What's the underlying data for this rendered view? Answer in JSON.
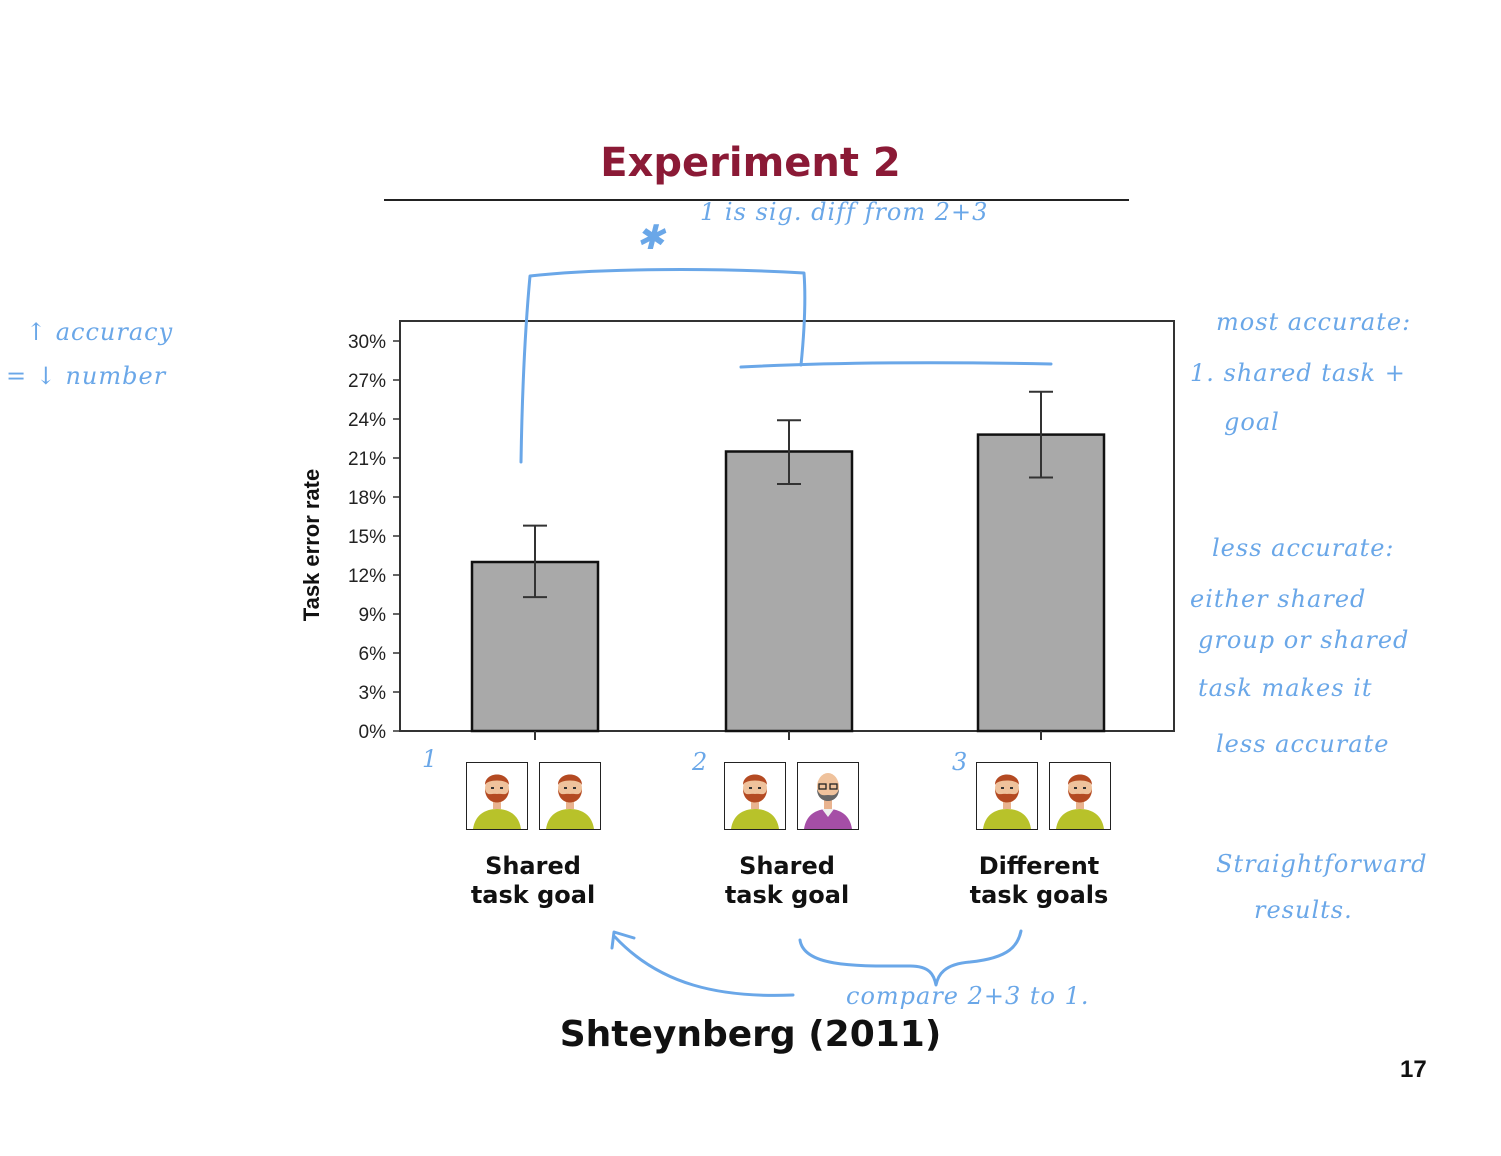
{
  "slide": {
    "title": "Experiment 2",
    "citation": "Shteynberg (2011)",
    "page_number": "17"
  },
  "chart_data": {
    "type": "bar",
    "ylabel": "Task error rate",
    "xlabel": "",
    "ylim": [
      0,
      30
    ],
    "yticks": [
      0,
      3,
      6,
      9,
      12,
      15,
      18,
      21,
      24,
      27,
      30
    ],
    "ytick_labels": [
      "0%",
      "3%",
      "6%",
      "9%",
      "12%",
      "15%",
      "18%",
      "21%",
      "24%",
      "27%",
      "30%"
    ],
    "categories": [
      "Shared task goal",
      "Shared task goal",
      "Different task goals"
    ],
    "category_lines": [
      [
        "Shared",
        "task goal"
      ],
      [
        "Shared",
        "task goal"
      ],
      [
        "Different",
        "task goals"
      ]
    ],
    "values": [
      13.0,
      21.5,
      22.8
    ],
    "error_low": [
      10.3,
      19.0,
      19.5
    ],
    "error_high": [
      15.8,
      23.9,
      26.1
    ],
    "bar_color": "#a9a9a9",
    "grid": false
  },
  "avatars": [
    [
      "bearded-man-green-shirt",
      "bearded-man-green-shirt"
    ],
    [
      "bearded-man-green-shirt",
      "bald-man-glasses-purple-shirt"
    ],
    [
      "bearded-man-green-shirt",
      "bearded-man-green-shirt"
    ]
  ],
  "annotations": {
    "star": "✱",
    "top": "1 is sig. diff from 2+3",
    "left_1": "↑ accuracy",
    "left_2": "= ↓ number",
    "right_1": "most accurate:",
    "right_2": "1. shared task +",
    "right_3": "goal",
    "right_4": "less accurate:",
    "right_5": "either shared",
    "right_6": "group or shared",
    "right_7": "task makes it",
    "right_8": "less accurate",
    "right_9": "Straightforward",
    "right_10": "results.",
    "bottom": "compare 2+3 to 1.",
    "num_1": "1",
    "num_2": "2",
    "num_3": "3",
    "ink_color": "#6aa7e8"
  }
}
